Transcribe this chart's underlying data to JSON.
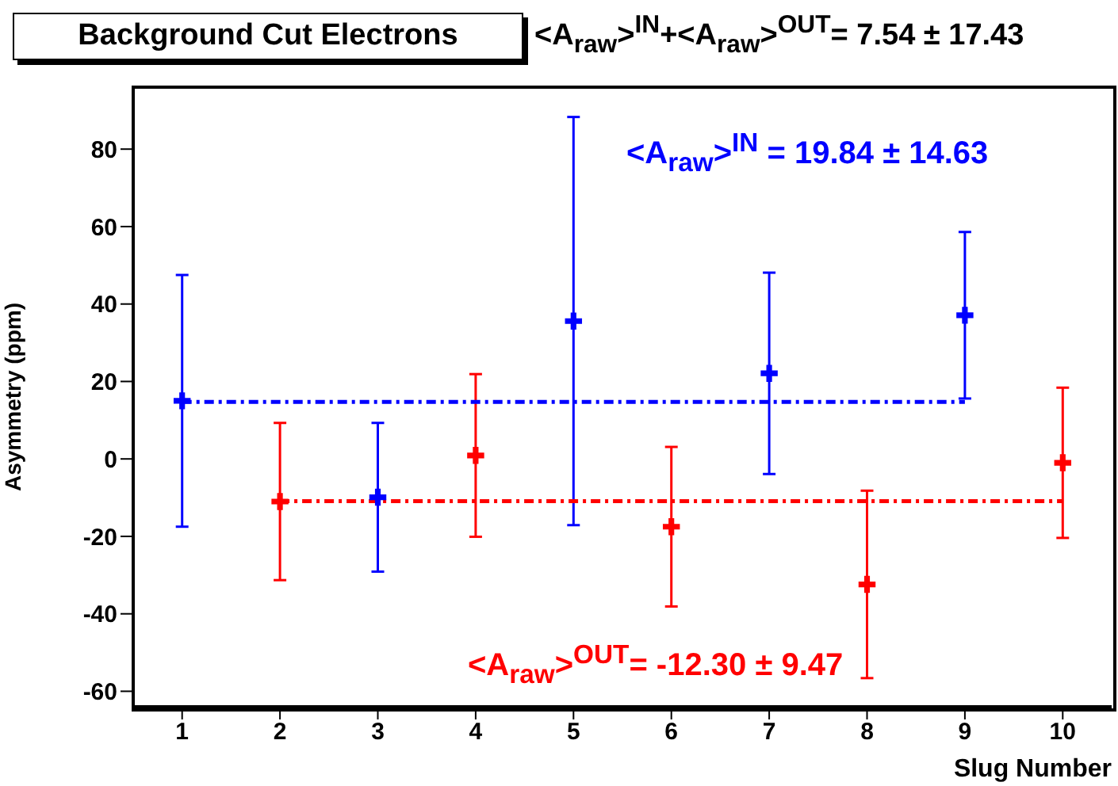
{
  "chart_data": {
    "type": "scatter",
    "title": "Background Cut Electrons",
    "subtitle": "<A$_{raw}$>$^{IN}$+<A$_{raw}$>$^{OUT}$= 7.54 ± 17.43",
    "xlabel": "Slug Number",
    "ylabel": "Asymmetry (ppm)",
    "annotations": [
      "<A$_{raw}$>$^{IN}$ = 19.84 ± 14.63",
      "<A$_{raw}$>$^{OUT}$= -12.30 ± 9.47"
    ],
    "xlim": [
      0.5,
      10.5
    ],
    "xticks": [
      1,
      2,
      3,
      4,
      5,
      6,
      7,
      8,
      9,
      10
    ],
    "ylim": [
      -64,
      96
    ],
    "yticks": [
      -60,
      -40,
      -20,
      0,
      20,
      40,
      60,
      80
    ],
    "grid": false,
    "legend": false,
    "marker": "cross",
    "series": [
      {
        "color": "#0000ff",
        "x": [
          1,
          3,
          5,
          7,
          9
        ],
        "values": [
          15,
          -9.9,
          35.6,
          22.1,
          37.1
        ],
        "errors": [
          32.5,
          19.2,
          52.7,
          26,
          21.5
        ]
      },
      {
        "color": "#ff0000",
        "x": [
          2,
          4,
          6,
          8,
          10
        ],
        "values": [
          -11,
          0.9,
          -17.5,
          -32.4,
          -1
        ],
        "errors": [
          20.3,
          21,
          20.6,
          24.2,
          19.4
        ]
      },
      {
        "type": "line",
        "color": "#0000ff",
        "line_style": "dashed",
        "marker": "none",
        "x": [
          1,
          9
        ],
        "values": [
          14.7,
          14.7
        ]
      },
      {
        "type": "line",
        "color": "#ff0000",
        "line_style": "dashed",
        "marker": "none",
        "x": [
          2,
          10
        ],
        "values": [
          -10.9,
          -10.9
        ]
      }
    ]
  }
}
